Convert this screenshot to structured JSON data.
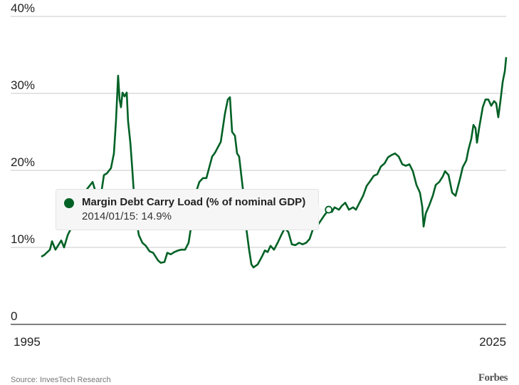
{
  "colors": {
    "line": "#006125",
    "grid": "#c8c8c8",
    "axis": "#333333"
  },
  "chart_data": {
    "type": "line",
    "title": "",
    "xlabel": "",
    "ylabel": "",
    "ylim": [
      0,
      40
    ],
    "xlim": [
      1995,
      2025.8
    ],
    "y_ticks": [
      {
        "value": 0,
        "label": "0"
      },
      {
        "value": 10,
        "label": "10%"
      },
      {
        "value": 20,
        "label": "20%"
      },
      {
        "value": 30,
        "label": "30%"
      },
      {
        "value": 40,
        "label": "40%"
      }
    ],
    "x_ticks": [
      {
        "value": 1995,
        "label": "1995"
      },
      {
        "value": 2025,
        "label": "2025"
      }
    ],
    "grid": true,
    "series": [
      {
        "name": "Margin Debt Carry Load (% of nominal GDP)",
        "points": [
          [
            1995.0,
            8.8
          ],
          [
            1995.19,
            9.0
          ],
          [
            1995.57,
            9.7
          ],
          [
            1995.71,
            10.8
          ],
          [
            1995.94,
            9.7
          ],
          [
            1996.32,
            10.9
          ],
          [
            1996.51,
            10.0
          ],
          [
            1996.75,
            11.6
          ],
          [
            1996.98,
            12.5
          ],
          [
            1997.22,
            14.4
          ],
          [
            1997.45,
            15.7
          ],
          [
            1997.83,
            17.1
          ],
          [
            1998.16,
            17.9
          ],
          [
            1998.4,
            18.5
          ],
          [
            1998.54,
            17.6
          ],
          [
            1998.87,
            15.7
          ],
          [
            1999.15,
            19.4
          ],
          [
            1999.34,
            19.6
          ],
          [
            1999.62,
            20.3
          ],
          [
            1999.81,
            22.2
          ],
          [
            1999.95,
            26.4
          ],
          [
            2000.09,
            32.3
          ],
          [
            2000.19,
            29.2
          ],
          [
            2000.28,
            28.2
          ],
          [
            2000.38,
            30.1
          ],
          [
            2000.52,
            29.6
          ],
          [
            2000.66,
            30.1
          ],
          [
            2000.75,
            26.4
          ],
          [
            2000.9,
            23.6
          ],
          [
            2001.04,
            19.9
          ],
          [
            2001.13,
            17.1
          ],
          [
            2001.23,
            14.4
          ],
          [
            2001.46,
            11.6
          ],
          [
            2001.7,
            10.6
          ],
          [
            2001.93,
            10.2
          ],
          [
            2002.17,
            9.5
          ],
          [
            2002.41,
            9.3
          ],
          [
            2002.74,
            8.3
          ],
          [
            2002.92,
            8.0
          ],
          [
            2003.16,
            8.1
          ],
          [
            2003.35,
            9.3
          ],
          [
            2003.58,
            9.1
          ],
          [
            2003.82,
            9.4
          ],
          [
            2004.06,
            9.6
          ],
          [
            2004.29,
            9.7
          ],
          [
            2004.53,
            9.7
          ],
          [
            2004.76,
            10.6
          ],
          [
            2004.91,
            12.5
          ],
          [
            2005.09,
            15.3
          ],
          [
            2005.24,
            17.1
          ],
          [
            2005.47,
            18.5
          ],
          [
            2005.71,
            19.0
          ],
          [
            2005.94,
            19.0
          ],
          [
            2006.32,
            21.8
          ],
          [
            2006.51,
            22.3
          ],
          [
            2006.7,
            23.0
          ],
          [
            2006.89,
            23.7
          ],
          [
            2007.17,
            27.4
          ],
          [
            2007.36,
            29.2
          ],
          [
            2007.5,
            29.5
          ],
          [
            2007.64,
            25.0
          ],
          [
            2007.83,
            24.5
          ],
          [
            2007.97,
            22.2
          ],
          [
            2008.11,
            21.8
          ],
          [
            2008.3,
            18.5
          ],
          [
            2008.44,
            16.2
          ],
          [
            2008.58,
            12.5
          ],
          [
            2008.77,
            9.7
          ],
          [
            2008.92,
            7.8
          ],
          [
            2009.06,
            7.4
          ],
          [
            2009.34,
            7.8
          ],
          [
            2009.62,
            8.8
          ],
          [
            2009.81,
            9.6
          ],
          [
            2010.0,
            9.4
          ],
          [
            2010.19,
            10.2
          ],
          [
            2010.42,
            9.7
          ],
          [
            2010.66,
            10.6
          ],
          [
            2010.9,
            11.6
          ],
          [
            2011.13,
            12.5
          ],
          [
            2011.37,
            12.0
          ],
          [
            2011.6,
            10.4
          ],
          [
            2011.84,
            10.3
          ],
          [
            2012.08,
            10.6
          ],
          [
            2012.31,
            10.4
          ],
          [
            2012.55,
            10.6
          ],
          [
            2012.78,
            11.1
          ],
          [
            2013.02,
            12.5
          ],
          [
            2013.25,
            12.7
          ],
          [
            2013.49,
            13.4
          ],
          [
            2013.73,
            14.1
          ],
          [
            2014.04,
            14.9
          ],
          [
            2014.25,
            14.6
          ],
          [
            2014.43,
            15.2
          ],
          [
            2014.72,
            14.9
          ],
          [
            2014.91,
            15.4
          ],
          [
            2015.14,
            15.8
          ],
          [
            2015.38,
            14.9
          ],
          [
            2015.66,
            15.2
          ],
          [
            2015.85,
            14.9
          ],
          [
            2016.08,
            15.8
          ],
          [
            2016.32,
            16.7
          ],
          [
            2016.56,
            18.0
          ],
          [
            2016.79,
            18.6
          ],
          [
            2017.03,
            19.3
          ],
          [
            2017.26,
            19.5
          ],
          [
            2017.5,
            20.5
          ],
          [
            2017.74,
            20.9
          ],
          [
            2017.97,
            21.7
          ],
          [
            2018.21,
            22.0
          ],
          [
            2018.44,
            22.2
          ],
          [
            2018.68,
            21.8
          ],
          [
            2018.92,
            20.8
          ],
          [
            2019.15,
            20.6
          ],
          [
            2019.39,
            20.8
          ],
          [
            2019.62,
            19.9
          ],
          [
            2019.86,
            18.1
          ],
          [
            2020.09,
            17.1
          ],
          [
            2020.24,
            15.3
          ],
          [
            2020.33,
            12.7
          ],
          [
            2020.47,
            14.4
          ],
          [
            2020.71,
            15.5
          ],
          [
            2020.94,
            16.7
          ],
          [
            2021.13,
            18.1
          ],
          [
            2021.37,
            18.5
          ],
          [
            2021.6,
            19.2
          ],
          [
            2021.75,
            19.9
          ],
          [
            2021.98,
            19.4
          ],
          [
            2022.22,
            17.1
          ],
          [
            2022.45,
            16.7
          ],
          [
            2022.74,
            18.9
          ],
          [
            2022.92,
            20.4
          ],
          [
            2023.16,
            21.3
          ],
          [
            2023.3,
            22.7
          ],
          [
            2023.49,
            24.1
          ],
          [
            2023.63,
            25.9
          ],
          [
            2023.77,
            25.5
          ],
          [
            2023.87,
            23.6
          ],
          [
            2024.01,
            25.5
          ],
          [
            2024.25,
            28.2
          ],
          [
            2024.43,
            29.2
          ],
          [
            2024.62,
            29.2
          ],
          [
            2024.81,
            28.4
          ],
          [
            2025.0,
            29.0
          ],
          [
            2025.14,
            28.7
          ],
          [
            2025.28,
            26.9
          ],
          [
            2025.42,
            29.0
          ],
          [
            2025.57,
            31.5
          ],
          [
            2025.71,
            32.9
          ],
          [
            2025.8,
            34.7
          ]
        ]
      }
    ],
    "highlight": {
      "x": 2014.04,
      "y": 14.9
    }
  },
  "tooltip": {
    "title": "Margin Debt Carry Load (% of nominal GDP)",
    "value": "2014/01/15: 14.9%"
  },
  "footer": {
    "source": "Source: InvesTech Research",
    "logo": "Forbes"
  }
}
